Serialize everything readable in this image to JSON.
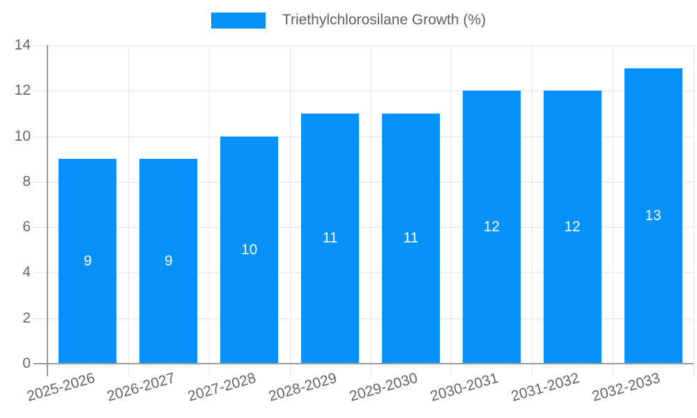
{
  "colors": {
    "bar": "#0590fa",
    "grid": "#e6e6e6",
    "axis": "#9a9a9a",
    "tick_text": "#666666",
    "legend_text": "#5f5f5f",
    "value_label": "#ffffff",
    "background": "#ffffff"
  },
  "chart_data": {
    "type": "bar",
    "title": "",
    "legend": [
      "Triethylchlorosilane Growth (%)"
    ],
    "legend_position": "top",
    "categories": [
      "2025-2026",
      "2026-2027",
      "2027-2028",
      "2028-2029",
      "2029-2030",
      "2030-2031",
      "2031-2032",
      "2032-2033"
    ],
    "values": [
      9,
      9,
      10,
      11,
      11,
      12,
      12,
      13
    ],
    "value_labels_visible": true,
    "value_labels_position": "inside-center",
    "xlabel": "",
    "ylabel": "",
    "ylim": [
      0,
      14
    ],
    "yticks": [
      0,
      2,
      4,
      6,
      8,
      10,
      12,
      14
    ],
    "grid": true
  }
}
